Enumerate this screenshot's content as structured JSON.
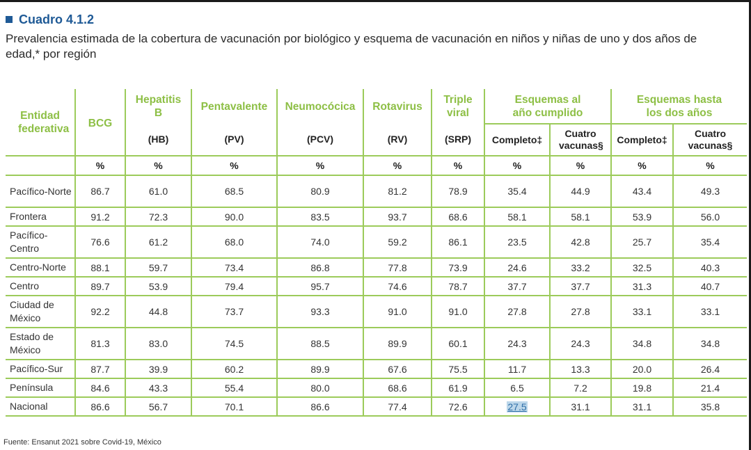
{
  "table_id": "Cuadro 4.1.2",
  "subtitle": "Prevalencia estimada de la cobertura de vacunación por biológico y esquema de vacunación en niños y niñas de uno y dos años de edad,* por región",
  "headers": {
    "entidad": "Entidad federativa",
    "bcg": "BCG",
    "hepatitis": "Hepatitis B",
    "pentavalente": "Pentavalente",
    "neumococica": "Neumocócica",
    "rotavirus": "Rotavirus",
    "triple": "Triple viral",
    "esquemas_anio": "Esquemas al año cumplido",
    "esquemas_dos": "Esquemas hasta los dos años",
    "hb": "(HB)",
    "pv": "(PV)",
    "pcv": "(PCV)",
    "rv": "(RV)",
    "srp": "(SRP)",
    "completo1": "Completo‡",
    "cuatro1": "Cuatro vacunas§",
    "completo2": "Completo‡",
    "cuatro2": "Cuatro vacunas§",
    "pct": "%"
  },
  "rows": [
    {
      "region": "Pacífico-Norte",
      "v": [
        "86.7",
        "61.0",
        "68.5",
        "80.9",
        "81.2",
        "78.9",
        "35.4",
        "44.9",
        "43.4",
        "49.3"
      ]
    },
    {
      "region": "Frontera",
      "v": [
        "91.2",
        "72.3",
        "90.0",
        "83.5",
        "93.7",
        "68.6",
        "58.1",
        "58.1",
        "53.9",
        "56.0"
      ]
    },
    {
      "region": "Pacífico-Centro",
      "v": [
        "76.6",
        "61.2",
        "68.0",
        "74.0",
        "59.2",
        "86.1",
        "23.5",
        "42.8",
        "25.7",
        "35.4"
      ]
    },
    {
      "region": "Centro-Norte",
      "v": [
        "88.1",
        "59.7",
        "73.4",
        "86.8",
        "77.8",
        "73.9",
        "24.6",
        "33.2",
        "32.5",
        "40.3"
      ]
    },
    {
      "region": "Centro",
      "v": [
        "89.7",
        "53.9",
        "79.4",
        "95.7",
        "74.6",
        "78.7",
        "37.7",
        "37.7",
        "31.3",
        "40.7"
      ]
    },
    {
      "region": "Ciudad de México",
      "v": [
        "92.2",
        "44.8",
        "73.7",
        "93.3",
        "91.0",
        "91.0",
        "27.8",
        "27.8",
        "33.1",
        "33.1"
      ]
    },
    {
      "region": "Estado de México",
      "v": [
        "81.3",
        "83.0",
        "74.5",
        "88.5",
        "89.9",
        "60.1",
        "24.3",
        "24.3",
        "34.8",
        "34.8"
      ]
    },
    {
      "region": "Pacífico-Sur",
      "v": [
        "87.7",
        "39.9",
        "60.2",
        "89.9",
        "67.6",
        "75.5",
        "11.7",
        "13.3",
        "20.0",
        "26.4"
      ]
    },
    {
      "region": "Península",
      "v": [
        "84.6",
        "43.3",
        "55.4",
        "80.0",
        "68.6",
        "61.9",
        "6.5",
        "7.2",
        "19.8",
        "21.4"
      ]
    },
    {
      "region": "Nacional",
      "v": [
        "86.6",
        "56.7",
        "70.1",
        "86.6",
        "77.4",
        "72.6",
        "27.5",
        "31.1",
        "31.1",
        "35.8"
      ]
    }
  ],
  "source": "Fuente: Ensanut 2021 sobre Covid-19, México",
  "colors": {
    "title": "#1f5a96",
    "header_green": "#8dbf45",
    "rule_green": "#9ccb5a",
    "highlight": "#bcd7ea"
  }
}
